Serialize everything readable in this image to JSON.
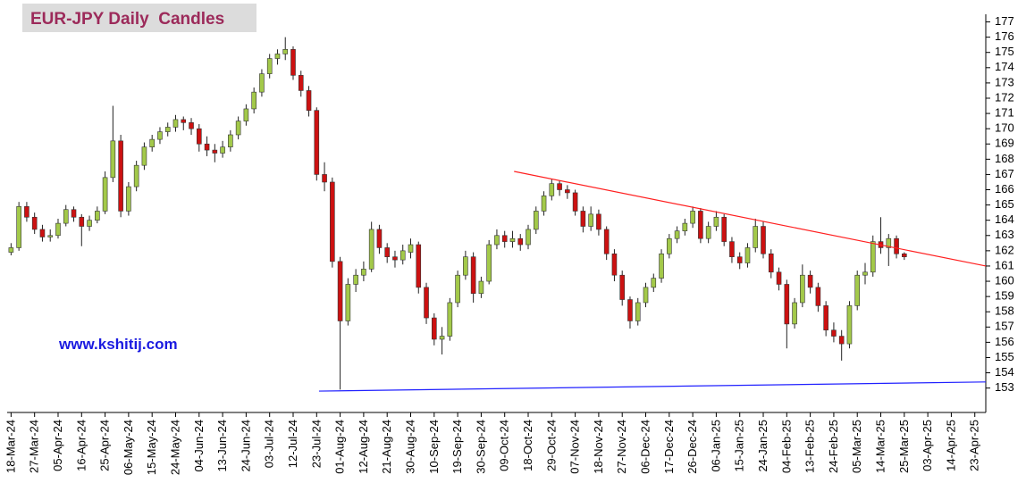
{
  "chart_data": {
    "type": "candlestick",
    "title": "EUR-JPY Daily  Candles",
    "annotation": "www.kshitij.com",
    "up_color": "#a3c94a",
    "down_color": "#cc1111",
    "xlim": [
      -0.5,
      124.4
    ],
    "ylim": [
      151.4,
      177.5
    ],
    "y_axis_side": "right",
    "grid": false,
    "xticks": [
      {
        "value": 0,
        "label": "18-Mar-24"
      },
      {
        "value": 3,
        "label": "27-Mar-24"
      },
      {
        "value": 6,
        "label": "05-Apr-24"
      },
      {
        "value": 9,
        "label": "16-Apr-24"
      },
      {
        "value": 12,
        "label": "25-Apr-24"
      },
      {
        "value": 15,
        "label": "06-May-24"
      },
      {
        "value": 18,
        "label": "15-May-24"
      },
      {
        "value": 21,
        "label": "24-May-24"
      },
      {
        "value": 24,
        "label": "04-Jun-24"
      },
      {
        "value": 27,
        "label": "13-Jun-24"
      },
      {
        "value": 30,
        "label": "24-Jun-24"
      },
      {
        "value": 33,
        "label": "03-Jul-24"
      },
      {
        "value": 36,
        "label": "12-Jul-24"
      },
      {
        "value": 39,
        "label": "23-Jul-24"
      },
      {
        "value": 42,
        "label": "01-Aug-24"
      },
      {
        "value": 45,
        "label": "12-Aug-24"
      },
      {
        "value": 48,
        "label": "21-Aug-24"
      },
      {
        "value": 51,
        "label": "30-Aug-24"
      },
      {
        "value": 54,
        "label": "10-Sep-24"
      },
      {
        "value": 57,
        "label": "19-Sep-24"
      },
      {
        "value": 60,
        "label": "30-Sep-24"
      },
      {
        "value": 63,
        "label": "09-Oct-24"
      },
      {
        "value": 66,
        "label": "18-Oct-24"
      },
      {
        "value": 69,
        "label": "29-Oct-24"
      },
      {
        "value": 72,
        "label": "07-Nov-24"
      },
      {
        "value": 75,
        "label": "18-Nov-24"
      },
      {
        "value": 78,
        "label": "27-Nov-24"
      },
      {
        "value": 81,
        "label": "06-Dec-24"
      },
      {
        "value": 84,
        "label": "17-Dec-24"
      },
      {
        "value": 87,
        "label": "26-Dec-24"
      },
      {
        "value": 90,
        "label": "06-Jan-25"
      },
      {
        "value": 93,
        "label": "15-Jan-25"
      },
      {
        "value": 96,
        "label": "24-Jan-25"
      },
      {
        "value": 99,
        "label": "04-Feb-25"
      },
      {
        "value": 102,
        "label": "13-Feb-25"
      },
      {
        "value": 105,
        "label": "24-Feb-25"
      },
      {
        "value": 108,
        "label": "05-Mar-25"
      },
      {
        "value": 111,
        "label": "14-Mar-25"
      },
      {
        "value": 114,
        "label": "25-Mar-25"
      },
      {
        "value": 117,
        "label": "03-Apr-25"
      },
      {
        "value": 120,
        "label": "14-Apr-25"
      },
      {
        "value": 123,
        "label": "23-Apr-25"
      }
    ],
    "yticks": [
      153,
      154,
      155,
      156,
      157,
      158,
      159,
      160,
      161,
      162,
      163,
      164,
      165,
      166,
      167,
      168,
      169,
      170,
      171,
      172,
      173,
      174,
      175,
      176,
      177
    ],
    "x": [
      0,
      1,
      2,
      3,
      4,
      5,
      6,
      7,
      8,
      9,
      10,
      11,
      12,
      13,
      14,
      15,
      16,
      17,
      18,
      19,
      20,
      21,
      22,
      23,
      24,
      25,
      26,
      27,
      28,
      29,
      30,
      31,
      32,
      33,
      34,
      35,
      36,
      37,
      38,
      39,
      40,
      41,
      42,
      43,
      44,
      45,
      46,
      47,
      48,
      49,
      50,
      51,
      52,
      53,
      54,
      55,
      56,
      57,
      58,
      59,
      60,
      61,
      62,
      63,
      64,
      65,
      66,
      67,
      68,
      69,
      70,
      71,
      72,
      73,
      74,
      75,
      76,
      77,
      78,
      79,
      80,
      81,
      82,
      83,
      84,
      85,
      86,
      87,
      88,
      89,
      90,
      91,
      92,
      93,
      94,
      95,
      96,
      97,
      98,
      99,
      100,
      101,
      102,
      103,
      104,
      105,
      106,
      107,
      108,
      109,
      110,
      111,
      112,
      113,
      114
    ],
    "open": [
      161.9,
      162.2,
      164.9,
      164.2,
      163.4,
      162.9,
      163.0,
      163.8,
      164.7,
      164.2,
      163.6,
      164.0,
      164.6,
      166.8,
      169.2,
      164.6,
      166.2,
      167.6,
      168.8,
      169.3,
      169.8,
      170.1,
      170.6,
      170.4,
      170.0,
      169.0,
      168.6,
      168.4,
      168.8,
      169.6,
      170.5,
      171.3,
      172.4,
      173.6,
      174.6,
      174.9,
      175.2,
      173.5,
      172.5,
      171.2,
      167.0,
      166.5,
      161.3,
      157.4,
      159.8,
      160.4,
      160.8,
      163.4,
      162.2,
      161.6,
      161.4,
      161.9,
      162.4,
      159.6,
      157.6,
      156.2,
      156.4,
      158.6,
      160.4,
      161.6,
      159.2,
      160.0,
      162.4,
      163.0,
      162.6,
      162.8,
      162.4,
      163.4,
      164.6,
      165.6,
      166.4,
      166.0,
      165.8,
      164.6,
      163.6,
      164.4,
      163.4,
      161.8,
      160.4,
      158.8,
      157.4,
      158.6,
      159.6,
      160.2,
      161.8,
      162.8,
      163.3,
      163.8,
      164.6,
      162.8,
      163.6,
      164.2,
      162.6,
      161.6,
      161.2,
      162.2,
      163.6,
      161.8,
      160.6,
      159.8,
      157.2,
      158.6,
      160.4,
      159.6,
      158.4,
      156.8,
      156.4,
      155.9,
      158.4,
      160.4,
      160.6,
      162.6,
      162.2,
      162.8,
      161.8
    ],
    "high": [
      162.5,
      165.2,
      165.2,
      164.5,
      163.7,
      163.4,
      164.1,
      165.0,
      164.9,
      164.4,
      164.3,
      164.9,
      167.2,
      171.5,
      169.6,
      166.5,
      167.9,
      169.1,
      169.6,
      170.1,
      170.4,
      170.9,
      170.8,
      170.7,
      170.3,
      169.5,
      169.0,
      169.2,
      169.9,
      170.8,
      171.6,
      172.7,
      173.9,
      174.9,
      175.2,
      176.0,
      175.4,
      173.8,
      172.8,
      171.4,
      167.8,
      166.8,
      161.6,
      160.2,
      160.8,
      161.3,
      163.9,
      163.7,
      162.5,
      162.0,
      162.4,
      162.8,
      162.6,
      159.9,
      157.9,
      157.0,
      158.9,
      160.7,
      162.0,
      161.9,
      160.3,
      162.7,
      163.4,
      163.3,
      163.3,
      163.1,
      163.7,
      164.9,
      165.9,
      166.7,
      166.6,
      166.3,
      166.0,
      164.9,
      164.9,
      164.7,
      163.6,
      162.1,
      160.7,
      159.0,
      158.9,
      159.9,
      160.5,
      162.1,
      163.1,
      163.6,
      164.1,
      164.9,
      164.8,
      163.9,
      164.6,
      164.4,
      162.9,
      161.9,
      162.5,
      164.1,
      163.9,
      162.1,
      160.9,
      160.1,
      158.9,
      161.1,
      160.7,
      159.9,
      158.7,
      157.3,
      156.8,
      158.7,
      160.7,
      161.2,
      163.0,
      164.2,
      163.1,
      163.0,
      161.9
    ],
    "low": [
      161.7,
      162.0,
      163.9,
      163.1,
      162.6,
      162.6,
      162.8,
      163.6,
      163.9,
      162.3,
      163.3,
      163.8,
      164.4,
      166.5,
      164.2,
      164.3,
      165.9,
      167.3,
      168.5,
      169.0,
      169.5,
      169.8,
      169.9,
      169.6,
      168.5,
      168.2,
      167.8,
      168.1,
      168.5,
      169.3,
      170.2,
      171.0,
      172.1,
      173.3,
      174.2,
      174.5,
      173.2,
      172.1,
      170.8,
      166.6,
      165.9,
      160.9,
      152.9,
      157.1,
      159.3,
      160.0,
      160.6,
      161.8,
      161.2,
      160.9,
      161.1,
      161.5,
      159.2,
      157.2,
      155.8,
      155.2,
      156.1,
      158.3,
      160.1,
      158.6,
      158.9,
      159.8,
      162.1,
      162.2,
      162.2,
      162.0,
      162.1,
      163.1,
      164.3,
      165.3,
      165.6,
      165.4,
      164.3,
      163.2,
      163.3,
      163.0,
      161.4,
      160.0,
      158.4,
      156.9,
      157.1,
      158.3,
      159.3,
      159.9,
      161.5,
      162.5,
      163.0,
      163.5,
      162.5,
      162.5,
      163.3,
      162.3,
      161.2,
      160.8,
      160.9,
      161.9,
      161.5,
      160.2,
      159.4,
      155.6,
      156.9,
      158.3,
      159.2,
      158.0,
      156.4,
      156.0,
      154.8,
      155.6,
      158.1,
      159.8,
      160.3,
      161.8,
      161.0,
      161.5,
      161.4
    ],
    "close": [
      162.2,
      164.9,
      164.2,
      163.4,
      162.9,
      163.0,
      163.8,
      164.7,
      164.2,
      163.6,
      164.0,
      164.6,
      166.8,
      169.2,
      164.6,
      166.2,
      167.6,
      168.8,
      169.3,
      169.8,
      170.1,
      170.6,
      170.4,
      170.0,
      169.0,
      168.6,
      168.4,
      168.8,
      169.6,
      170.5,
      171.3,
      172.4,
      173.6,
      174.6,
      174.9,
      175.2,
      173.5,
      172.5,
      171.2,
      167.0,
      166.5,
      161.3,
      157.4,
      159.8,
      160.4,
      160.8,
      163.4,
      162.2,
      161.6,
      161.4,
      162.0,
      162.4,
      159.6,
      157.6,
      156.2,
      156.4,
      158.6,
      160.4,
      161.6,
      159.2,
      160.0,
      162.4,
      163.0,
      162.6,
      162.8,
      162.4,
      163.4,
      164.6,
      165.6,
      166.4,
      166.0,
      165.8,
      164.6,
      163.6,
      164.4,
      163.4,
      161.8,
      160.4,
      158.8,
      157.4,
      158.6,
      159.6,
      160.2,
      161.8,
      162.8,
      163.3,
      163.8,
      164.6,
      162.8,
      163.6,
      164.2,
      162.6,
      161.6,
      161.2,
      162.2,
      163.6,
      161.8,
      160.6,
      159.8,
      157.2,
      158.6,
      160.4,
      159.6,
      158.4,
      156.8,
      156.4,
      155.9,
      158.4,
      160.4,
      160.6,
      162.6,
      162.2,
      162.8,
      161.8,
      161.6
    ],
    "trendlines": [
      {
        "color": "#ff2020",
        "x": [
          64.2,
          124.4
        ],
        "y": [
          167.2,
          161.0
        ]
      },
      {
        "color": "#2020ff",
        "x": [
          39.3,
          124.4
        ],
        "y": [
          152.8,
          153.4
        ]
      }
    ]
  }
}
